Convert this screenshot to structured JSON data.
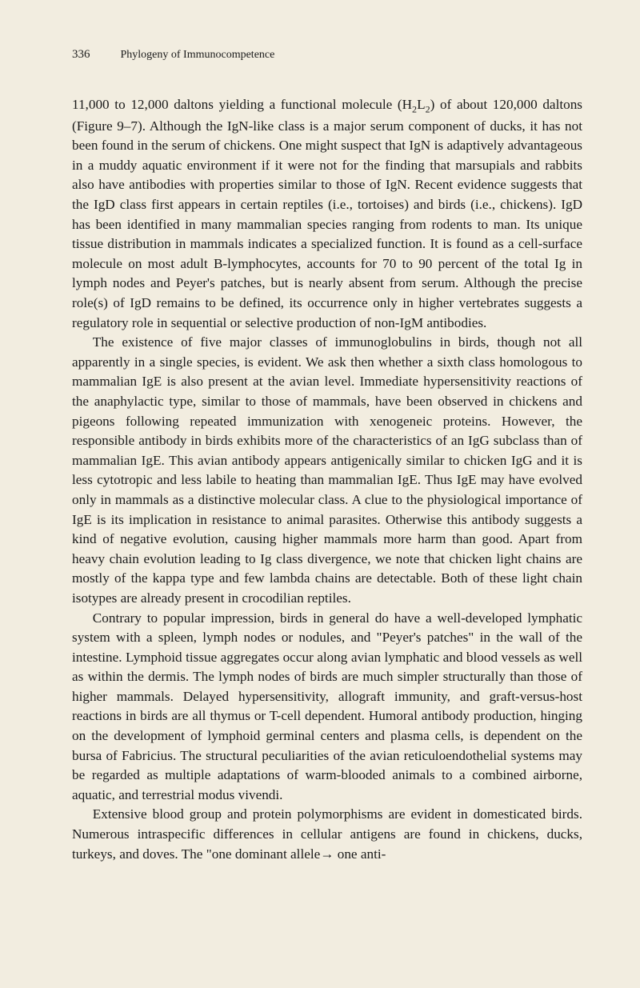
{
  "header": {
    "page_number": "336",
    "chapter_title": "Phylogeny of Immunocompetence"
  },
  "body": {
    "para1_part1": "11,000 to 12,000 daltons yielding a functional molecule (H",
    "para1_sub1": "2",
    "para1_part2": "L",
    "para1_sub2": "2",
    "para1_part3": ") of about 120,000 daltons (Figure 9–7). Although the IgN-like class is a major serum component of ducks, it has not been found in the serum of chickens. One might suspect that IgN is adaptively advantageous in a muddy aquatic environment if it were not for the finding that marsupials and rabbits also have antibodies with properties similar to those of IgN. Recent evidence suggests that the IgD class first appears in certain reptiles (i.e., tortoises) and birds (i.e., chickens). IgD has been identified in many mammalian species ranging from rodents to man. Its unique tissue distribution in mammals indicates a specialized function. It is found as a cell-surface molecule on most adult B-lymphocytes, accounts for 70 to 90 percent of the total Ig in lymph nodes and Peyer's patches, but is nearly absent from serum. Although the precise role(s) of IgD remains to be defined, its occurrence only in higher vertebrates suggests a regulatory role in sequential or selective production of non-IgM antibodies.",
    "para2": "The existence of five major classes of immunoglobulins in birds, though not all apparently in a single species, is evident. We ask then whether a sixth class homologous to mammalian IgE is also present at the avian level. Immediate hypersensitivity reactions of the anaphylactic type, similar to those of mammals, have been observed in chickens and pigeons following repeated immunization with xenogeneic proteins. However, the responsible antibody in birds exhibits more of the characteristics of an IgG subclass than of mammalian IgE. This avian antibody appears antigenically similar to chicken IgG and it is less cytotropic and less labile to heating than mammalian IgE. Thus IgE may have evolved only in mammals as a distinctive molecular class. A clue to the physiological importance of IgE is its implication in resistance to animal parasites. Otherwise this antibody suggests a kind of negative evolution, causing higher mammals more harm than good. Apart from heavy chain evolution leading to Ig class divergence, we note that chicken light chains are mostly of the kappa type and few lambda chains are detectable. Both of these light chain isotypes are already present in crocodilian reptiles.",
    "para3": "Contrary to popular impression, birds in general do have a well-developed lymphatic system with a spleen, lymph nodes or nodules, and \"Peyer's patches\" in the wall of the intestine. Lymphoid tissue aggregates occur along avian lymphatic and blood vessels as well as within the dermis. The lymph nodes of birds are much simpler structurally than those of higher mammals. Delayed hypersensitivity, allograft immunity, and graft-versus-host reactions in birds are all thymus or T-cell dependent. Humoral antibody production, hinging on the development of lymphoid germinal centers and plasma cells, is dependent on the bursa of Fabricius. The structural peculiarities of the avian reticuloendothelial systems may be regarded as multiple adaptations of warm-blooded animals to a combined airborne, aquatic, and terrestrial modus vivendi.",
    "para4": "Extensive blood group and protein polymorphisms are evident in domesticated birds. Numerous intraspecific differences in cellular antigens are found in chickens, ducks, turkeys, and doves. The \"one dominant allele→ one anti-"
  }
}
